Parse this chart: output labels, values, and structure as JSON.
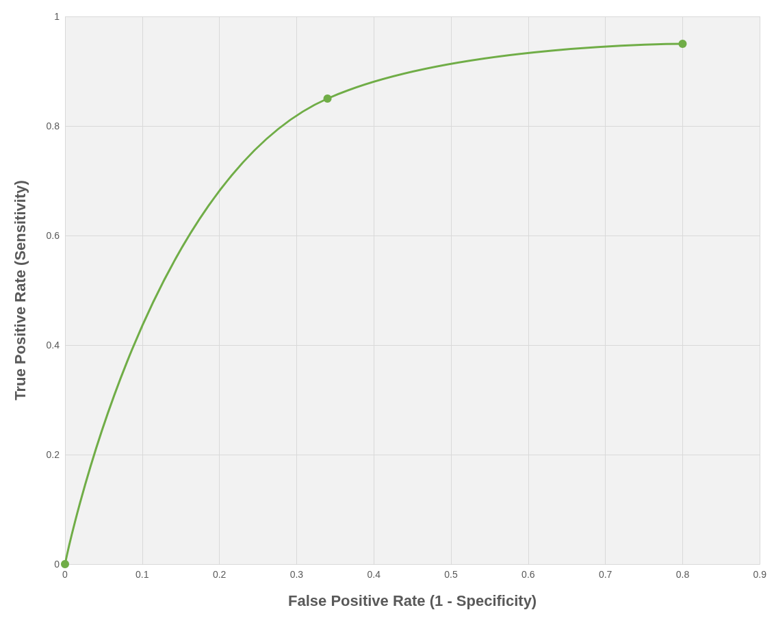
{
  "chart_data": {
    "type": "line",
    "xlabel": "False Positive Rate (1 - Specificity)",
    "ylabel": "True Positive Rate (Sensitivity)",
    "series": [
      {
        "color": "#70ad47",
        "x": [
          0,
          0.34,
          0.8
        ],
        "values": [
          0,
          0.85,
          0.95
        ]
      }
    ],
    "xlim": [
      0,
      0.9
    ],
    "xticks": [
      0,
      0.1,
      0.2,
      0.3,
      0.4,
      0.5,
      0.6,
      0.7,
      0.8,
      0.9
    ],
    "ylim": [
      0,
      1
    ],
    "yticks": [
      0,
      0.2,
      0.4,
      0.6,
      0.8,
      1
    ],
    "grid": true,
    "marker": "circle",
    "line_style": "solid"
  }
}
